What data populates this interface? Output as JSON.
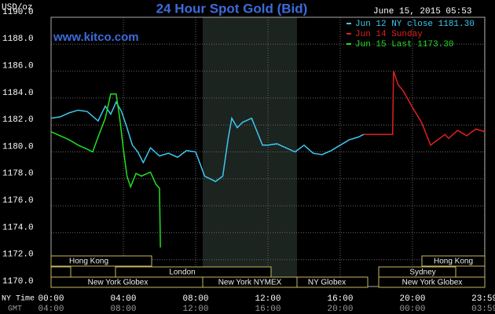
{
  "chart_data": {
    "type": "line",
    "title": "24 Hour Spot Gold (Bid)",
    "unit": "USD/oz",
    "timestamp": "June 15, 2015 05:53",
    "website": "www.kitco.com",
    "xlabel": "NY Time",
    "x2label": "GMT",
    "xlim": [
      0,
      24
    ],
    "xticks": [
      {
        "value": 0,
        "label": "00:00"
      },
      {
        "value": 4,
        "label": "04:00"
      },
      {
        "value": 8,
        "label": "08:00"
      },
      {
        "value": 12,
        "label": "12:00"
      },
      {
        "value": 16,
        "label": "16:00"
      },
      {
        "value": 20,
        "label": "20:00"
      },
      {
        "value": 23.983,
        "label": "23:59"
      }
    ],
    "x2ticks": [
      "04:00",
      "08:00",
      "12:00",
      "16:00",
      "20:00",
      "00:00",
      "03:59"
    ],
    "ylim": [
      1170,
      1190
    ],
    "yticks": [
      {
        "value": 1170,
        "label": "1170.0"
      },
      {
        "value": 1172,
        "label": "1172.0"
      },
      {
        "value": 1174,
        "label": "1174.0"
      },
      {
        "value": 1176,
        "label": "1176.0"
      },
      {
        "value": 1178,
        "label": "1178.0"
      },
      {
        "value": 1180,
        "label": "1180.0"
      },
      {
        "value": 1182,
        "label": "1182.0"
      },
      {
        "value": 1184,
        "label": "1184.0"
      },
      {
        "value": 1186,
        "label": "1186.0"
      },
      {
        "value": 1188,
        "label": "1188.0"
      },
      {
        "value": 1190,
        "label": "1190.0"
      }
    ],
    "grid": true,
    "sessions": [
      "Hong Kong",
      "London",
      "New York Globex",
      "New York NYMEX",
      "NY Globex",
      "Sydney",
      "Hong Kong",
      "New York Globex"
    ],
    "series": [
      {
        "name": "Jun 12 NY close 1181.30",
        "color": "#3ec8f0",
        "x": [
          0,
          0.5,
          1,
          1.5,
          2,
          2.6,
          3,
          3.3,
          3.6,
          3.9,
          4.2,
          4.5,
          4.8,
          5.1,
          5.5,
          6,
          6.5,
          7,
          7.5,
          8,
          8.5,
          8.8,
          9.1,
          9.5,
          9.8,
          10,
          10.3,
          10.6,
          11.1,
          11.4,
          11.7,
          12,
          12.5,
          13,
          13.5,
          14,
          14.5,
          15,
          15.5,
          16,
          16.5,
          17,
          17.3
        ],
        "values": [
          1182.5,
          1182.6,
          1182.9,
          1183.1,
          1183.0,
          1182.3,
          1183.4,
          1182.8,
          1183.7,
          1183.0,
          1181.8,
          1180.5,
          1180.0,
          1179.2,
          1180.3,
          1179.7,
          1179.9,
          1179.6,
          1180.1,
          1180.0,
          1178.2,
          1178.0,
          1177.8,
          1178.2,
          1181.0,
          1182.5,
          1181.8,
          1182.2,
          1182.5,
          1181.5,
          1180.5,
          1180.5,
          1180.6,
          1180.3,
          1180.0,
          1180.5,
          1179.9,
          1179.8,
          1180.1,
          1180.5,
          1180.9,
          1181.1,
          1181.3
        ]
      },
      {
        "name": "Jun 14 Sunday",
        "color": "#e02020",
        "x": [
          17.3,
          18.9,
          18.95,
          19.2,
          19.5,
          20,
          20.5,
          21,
          21.3,
          21.8,
          22,
          22.5,
          23,
          23.5,
          24
        ],
        "values": [
          1181.3,
          1181.3,
          1186.0,
          1185.0,
          1184.5,
          1183.3,
          1182.2,
          1180.5,
          1180.8,
          1181.3,
          1181.0,
          1181.6,
          1181.2,
          1181.7,
          1181.5
        ]
      },
      {
        "name": "Jun 15 Last 1173.30",
        "color": "#20e020",
        "x": [
          0,
          0.5,
          1,
          1.5,
          2,
          2.3,
          2.6,
          3,
          3.3,
          3.6,
          3.8,
          4,
          4.2,
          4.4,
          4.7,
          5,
          5.5,
          5.8,
          6,
          6.05
        ],
        "values": [
          1181.5,
          1181.2,
          1180.9,
          1180.5,
          1180.2,
          1180.0,
          1181.1,
          1182.5,
          1184.3,
          1184.3,
          1182.5,
          1180.2,
          1178.2,
          1177.4,
          1178.4,
          1178.2,
          1178.5,
          1177.6,
          1177.3,
          1172.9
        ]
      }
    ]
  }
}
